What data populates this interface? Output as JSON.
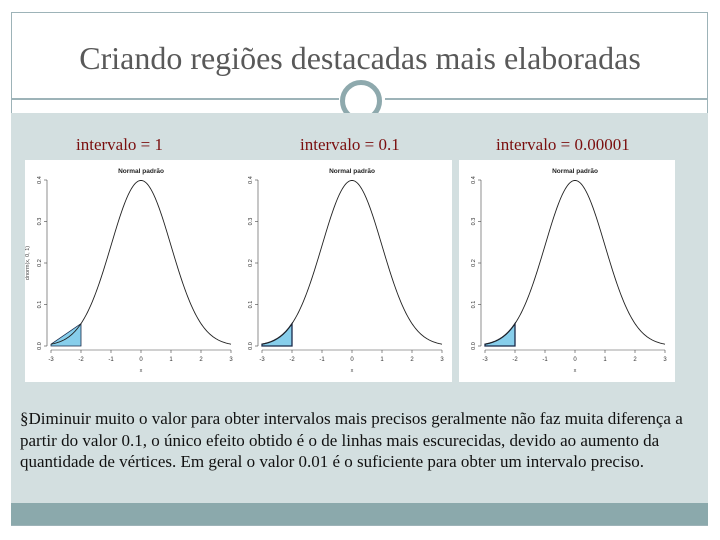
{
  "slide": {
    "title": "Criando regiões destacadas mais elaboradas",
    "body_text": "§Diminuir muito o valor para obter intervalos mais precisos geralmente não faz muita diferença a partir do valor 0.1, o único efeito obtido é o de linhas mais escurecidas, devido ao aumento da quantidade de vértices. Em geral o valor 0.01 é o suficiente para obter um intervalo preciso."
  },
  "panels": [
    {
      "caption": "intervalo = 1",
      "interval": 1
    },
    {
      "caption": "intervalo = 0.1",
      "interval": 0.1
    },
    {
      "caption": "intervalo = 0.00001",
      "interval": 1e-05
    }
  ],
  "colors": {
    "accent": "#8ba9ac",
    "caption": "#7a0e0e",
    "shade": "#87ceeb"
  },
  "chart_data": [
    {
      "type": "line",
      "title": "Normal padrão",
      "ylabel": "dnorm(x, 0, 1)",
      "xlabel": "x",
      "xlim": [
        -3,
        3
      ],
      "ylim": [
        0,
        0.4
      ],
      "shade_range": [
        -3,
        -2
      ],
      "shade_step": 1,
      "xticks": [
        "-3",
        "-2",
        "-1",
        "0",
        "1",
        "2",
        "3"
      ],
      "yticks": [
        "0.0",
        "0.1",
        "0.2",
        "0.3",
        "0.4"
      ]
    },
    {
      "type": "line",
      "title": "Normal padrão",
      "ylabel": "",
      "xlabel": "x",
      "xlim": [
        -3,
        3
      ],
      "ylim": [
        0,
        0.4
      ],
      "shade_range": [
        -3,
        -2
      ],
      "shade_step": 0.1,
      "xticks": [
        "-3",
        "-2",
        "-1",
        "0",
        "1",
        "2",
        "3"
      ],
      "yticks": [
        "0.0",
        "0.1",
        "0.2",
        "0.3",
        "0.4"
      ]
    },
    {
      "type": "line",
      "title": "Normal padrão",
      "ylabel": "",
      "xlabel": "x",
      "xlim": [
        -3,
        3
      ],
      "ylim": [
        0,
        0.4
      ],
      "shade_range": [
        -3,
        -2
      ],
      "shade_step": 1e-05,
      "xticks": [
        "-3",
        "-2",
        "-1",
        "0",
        "1",
        "2",
        "3"
      ],
      "yticks": [
        "0.0",
        "0.1",
        "0.2",
        "0.3",
        "0.4"
      ]
    }
  ]
}
